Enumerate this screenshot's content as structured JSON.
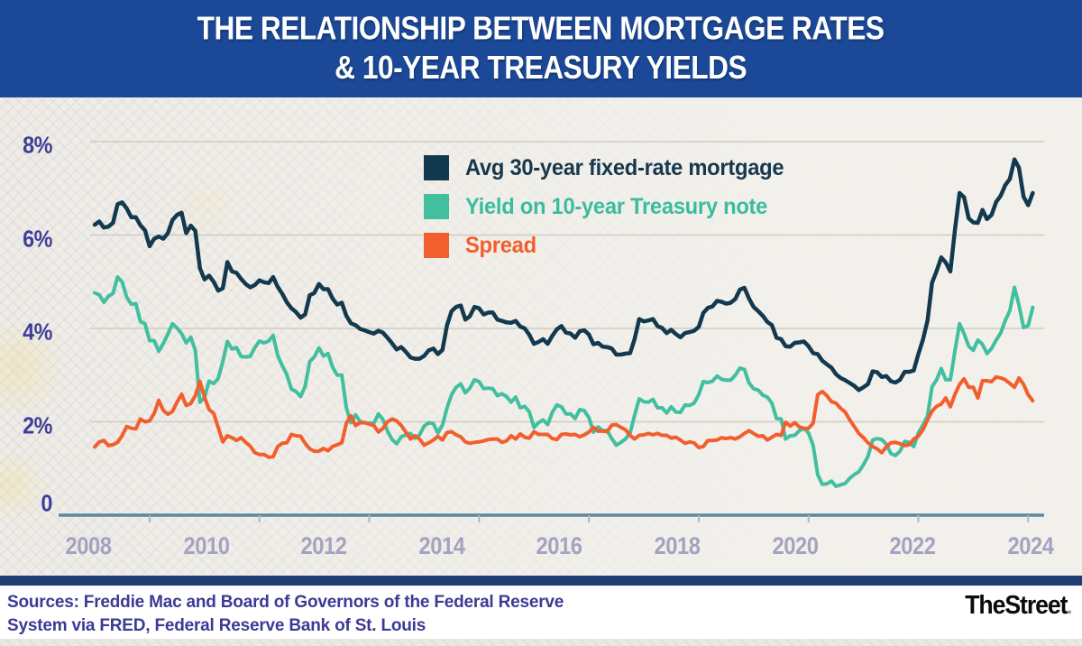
{
  "header": {
    "title_line1": "THE RELATIONSHIP BETWEEN MORTGAGE RATES",
    "title_line2": "& 10-YEAR TREASURY YIELDS"
  },
  "footer": {
    "sources_line1": "Sources: Freddie Mac and Board of Governors of the Federal Reserve",
    "sources_line2": "System via FRED, Federal Reserve Bank of St. Louis",
    "logo_text": "TheStreet",
    "logo_period": "."
  },
  "colors": {
    "header_blue": "#1b4897",
    "mortgage_navy": "#13394f",
    "treasury_teal": "#41bf9f",
    "spread_orange": "#f25e2d",
    "grid": "#cfccc4",
    "axis": "#5d87a0",
    "tick": "#9fbccd",
    "y_label": "#3f3d99",
    "x_label": "#a5a2c1",
    "footer_bar_navy": "#1d3d73",
    "sources_text": "#3c3a94"
  },
  "chart_data": {
    "type": "line",
    "title": "The relationship between mortgage rates & 10-year Treasury yields",
    "xlabel": "",
    "ylabel": "",
    "ylim": [
      0,
      8
    ],
    "grid": "horizontal",
    "legend_position": "top-center-inside",
    "x_start": 2007.0,
    "points_per_year": 12,
    "x_tick_labels": [
      "2008",
      "2010",
      "2012",
      "2014",
      "2016",
      "2018",
      "2020",
      "2022",
      "2024"
    ],
    "y_ticks": [
      {
        "label": "8%",
        "value": 8
      },
      {
        "label": "6%",
        "value": 6
      },
      {
        "label": "4%",
        "value": 4
      },
      {
        "label": "2%",
        "value": 2
      },
      {
        "label": "0",
        "value": 0
      }
    ],
    "series": [
      {
        "id": "mortgage",
        "name": "Avg 30-year fixed-rate mortgage",
        "color": "#13394f",
        "stroke_width": 4.5,
        "values": [
          6.22,
          6.29,
          6.16,
          6.18,
          6.26,
          6.66,
          6.7,
          6.57,
          6.38,
          6.38,
          6.21,
          6.1,
          5.76,
          5.92,
          5.97,
          5.92,
          6.04,
          6.32,
          6.43,
          6.48,
          6.04,
          6.2,
          6.09,
          5.29,
          5.05,
          5.13,
          5.0,
          4.81,
          4.86,
          5.42,
          5.22,
          5.19,
          5.06,
          4.95,
          4.88,
          4.93,
          5.03,
          4.99,
          4.97,
          5.1,
          4.89,
          4.74,
          4.56,
          4.43,
          4.35,
          4.23,
          4.3,
          4.71,
          4.76,
          4.95,
          4.84,
          4.84,
          4.64,
          4.51,
          4.55,
          4.27,
          4.11,
          4.07,
          3.99,
          3.96,
          3.92,
          3.89,
          3.95,
          3.91,
          3.8,
          3.68,
          3.55,
          3.6,
          3.5,
          3.38,
          3.35,
          3.35,
          3.41,
          3.53,
          3.57,
          3.45,
          3.54,
          4.07,
          4.37,
          4.46,
          4.49,
          4.19,
          4.26,
          4.46,
          4.43,
          4.3,
          4.34,
          4.34,
          4.19,
          4.16,
          4.13,
          4.12,
          4.16,
          4.04,
          4.0,
          3.86,
          3.67,
          3.71,
          3.77,
          3.67,
          3.84,
          3.98,
          4.05,
          3.91,
          3.89,
          3.8,
          3.94,
          3.96,
          3.87,
          3.66,
          3.69,
          3.61,
          3.6,
          3.57,
          3.44,
          3.44,
          3.46,
          3.47,
          3.77,
          4.2,
          4.15,
          4.17,
          4.2,
          4.05,
          4.01,
          3.9,
          3.97,
          3.88,
          3.81,
          3.9,
          3.92,
          3.95,
          4.03,
          4.33,
          4.44,
          4.47,
          4.59,
          4.57,
          4.53,
          4.55,
          4.63,
          4.83,
          4.87,
          4.64,
          4.46,
          4.37,
          4.27,
          4.14,
          4.07,
          3.8,
          3.77,
          3.62,
          3.61,
          3.69,
          3.7,
          3.72,
          3.62,
          3.47,
          3.45,
          3.31,
          3.23,
          3.16,
          3.02,
          2.94,
          2.89,
          2.83,
          2.77,
          2.68,
          2.74,
          2.81,
          3.08,
          3.06,
          2.96,
          2.98,
          2.87,
          2.84,
          2.9,
          3.07,
          3.07,
          3.1,
          3.45,
          3.76,
          4.17,
          4.98,
          5.23,
          5.52,
          5.41,
          5.22,
          6.11,
          6.9,
          6.81,
          6.36,
          6.27,
          6.26,
          6.54,
          6.34,
          6.43,
          6.71,
          6.84,
          7.07,
          7.2,
          7.62,
          7.44,
          6.82,
          6.64,
          6.9
        ]
      },
      {
        "id": "treasury",
        "name": "Yield on 10-year Treasury note",
        "color": "#41bf9f",
        "stroke_width": 4,
        "values": [
          4.76,
          4.72,
          4.56,
          4.69,
          4.75,
          5.1,
          5.0,
          4.67,
          4.52,
          4.53,
          4.15,
          4.1,
          3.74,
          3.74,
          3.51,
          3.68,
          3.88,
          4.1,
          4.01,
          3.89,
          3.69,
          3.81,
          3.53,
          2.42,
          2.52,
          2.87,
          2.82,
          2.93,
          3.29,
          3.72,
          3.56,
          3.59,
          3.4,
          3.39,
          3.4,
          3.59,
          3.73,
          3.69,
          3.73,
          3.85,
          3.42,
          3.2,
          3.01,
          2.7,
          2.65,
          2.54,
          2.76,
          3.29,
          3.39,
          3.58,
          3.41,
          3.46,
          3.17,
          3.0,
          3.0,
          2.3,
          1.98,
          2.15,
          2.01,
          1.98,
          1.97,
          1.97,
          2.17,
          2.05,
          1.8,
          1.62,
          1.53,
          1.68,
          1.72,
          1.75,
          1.65,
          1.72,
          1.91,
          1.98,
          1.96,
          1.76,
          1.93,
          2.3,
          2.58,
          2.74,
          2.81,
          2.62,
          2.72,
          2.9,
          2.86,
          2.71,
          2.72,
          2.71,
          2.56,
          2.6,
          2.54,
          2.42,
          2.53,
          2.3,
          2.33,
          2.21,
          1.88,
          1.98,
          2.04,
          1.94,
          2.2,
          2.36,
          2.32,
          2.17,
          2.17,
          2.07,
          2.26,
          2.24,
          2.09,
          1.78,
          1.89,
          1.81,
          1.81,
          1.64,
          1.5,
          1.56,
          1.63,
          1.76,
          2.14,
          2.49,
          2.43,
          2.42,
          2.48,
          2.3,
          2.3,
          2.19,
          2.32,
          2.21,
          2.2,
          2.36,
          2.35,
          2.4,
          2.58,
          2.86,
          2.84,
          2.87,
          2.98,
          2.91,
          2.89,
          2.89,
          3.0,
          3.15,
          3.12,
          2.83,
          2.71,
          2.68,
          2.57,
          2.53,
          2.4,
          2.07,
          2.06,
          1.63,
          1.7,
          1.71,
          1.81,
          1.86,
          1.76,
          1.5,
          0.87,
          0.66,
          0.67,
          0.73,
          0.62,
          0.65,
          0.68,
          0.79,
          0.87,
          0.93,
          1.08,
          1.26,
          1.61,
          1.64,
          1.62,
          1.52,
          1.32,
          1.28,
          1.37,
          1.58,
          1.56,
          1.47,
          1.76,
          1.93,
          2.13,
          2.75,
          2.9,
          3.14,
          2.9,
          2.9,
          3.52,
          4.1,
          3.89,
          3.62,
          3.53,
          3.75,
          3.66,
          3.46,
          3.57,
          3.75,
          3.9,
          4.17,
          4.38,
          4.88,
          4.5,
          4.02,
          4.06,
          4.45
        ]
      },
      {
        "id": "spread",
        "name": "Spread",
        "color": "#f25e2d",
        "stroke_width": 4,
        "values": [
          1.46,
          1.57,
          1.6,
          1.49,
          1.51,
          1.56,
          1.7,
          1.9,
          1.86,
          1.85,
          2.06,
          2.0,
          2.02,
          2.18,
          2.46,
          2.24,
          2.16,
          2.22,
          2.42,
          2.59,
          2.35,
          2.39,
          2.56,
          2.87,
          2.53,
          2.26,
          2.18,
          1.88,
          1.57,
          1.7,
          1.66,
          1.6,
          1.66,
          1.56,
          1.48,
          1.34,
          1.3,
          1.3,
          1.24,
          1.25,
          1.47,
          1.54,
          1.55,
          1.73,
          1.7,
          1.69,
          1.54,
          1.42,
          1.37,
          1.37,
          1.43,
          1.38,
          1.47,
          1.51,
          1.55,
          1.97,
          2.13,
          1.92,
          1.98,
          1.98,
          1.95,
          1.92,
          1.78,
          1.86,
          2.0,
          2.06,
          2.02,
          1.92,
          1.78,
          1.63,
          1.7,
          1.63,
          1.5,
          1.55,
          1.61,
          1.69,
          1.61,
          1.77,
          1.79,
          1.72,
          1.68,
          1.57,
          1.54,
          1.56,
          1.57,
          1.59,
          1.62,
          1.63,
          1.63,
          1.56,
          1.59,
          1.7,
          1.63,
          1.74,
          1.67,
          1.65,
          1.79,
          1.73,
          1.73,
          1.73,
          1.64,
          1.62,
          1.73,
          1.74,
          1.72,
          1.73,
          1.68,
          1.72,
          1.78,
          1.88,
          1.8,
          1.8,
          1.79,
          1.93,
          1.94,
          1.88,
          1.83,
          1.71,
          1.63,
          1.71,
          1.72,
          1.75,
          1.72,
          1.75,
          1.71,
          1.71,
          1.65,
          1.67,
          1.61,
          1.54,
          1.57,
          1.55,
          1.45,
          1.47,
          1.6,
          1.6,
          1.61,
          1.66,
          1.64,
          1.66,
          1.63,
          1.68,
          1.75,
          1.81,
          1.75,
          1.69,
          1.7,
          1.61,
          1.67,
          1.73,
          1.71,
          1.99,
          1.91,
          1.98,
          1.89,
          1.86,
          1.86,
          1.97,
          2.58,
          2.65,
          2.56,
          2.43,
          2.4,
          2.29,
          2.21,
          2.04,
          1.9,
          1.75,
          1.66,
          1.55,
          1.47,
          1.42,
          1.34,
          1.46,
          1.55,
          1.56,
          1.53,
          1.49,
          1.51,
          1.63,
          1.69,
          1.83,
          2.04,
          2.23,
          2.33,
          2.38,
          2.51,
          2.32,
          2.59,
          2.8,
          2.92,
          2.74,
          2.74,
          2.51,
          2.88,
          2.88,
          2.86,
          2.96,
          2.94,
          2.9,
          2.82,
          2.74,
          2.94,
          2.8,
          2.58,
          2.45
        ]
      }
    ]
  }
}
